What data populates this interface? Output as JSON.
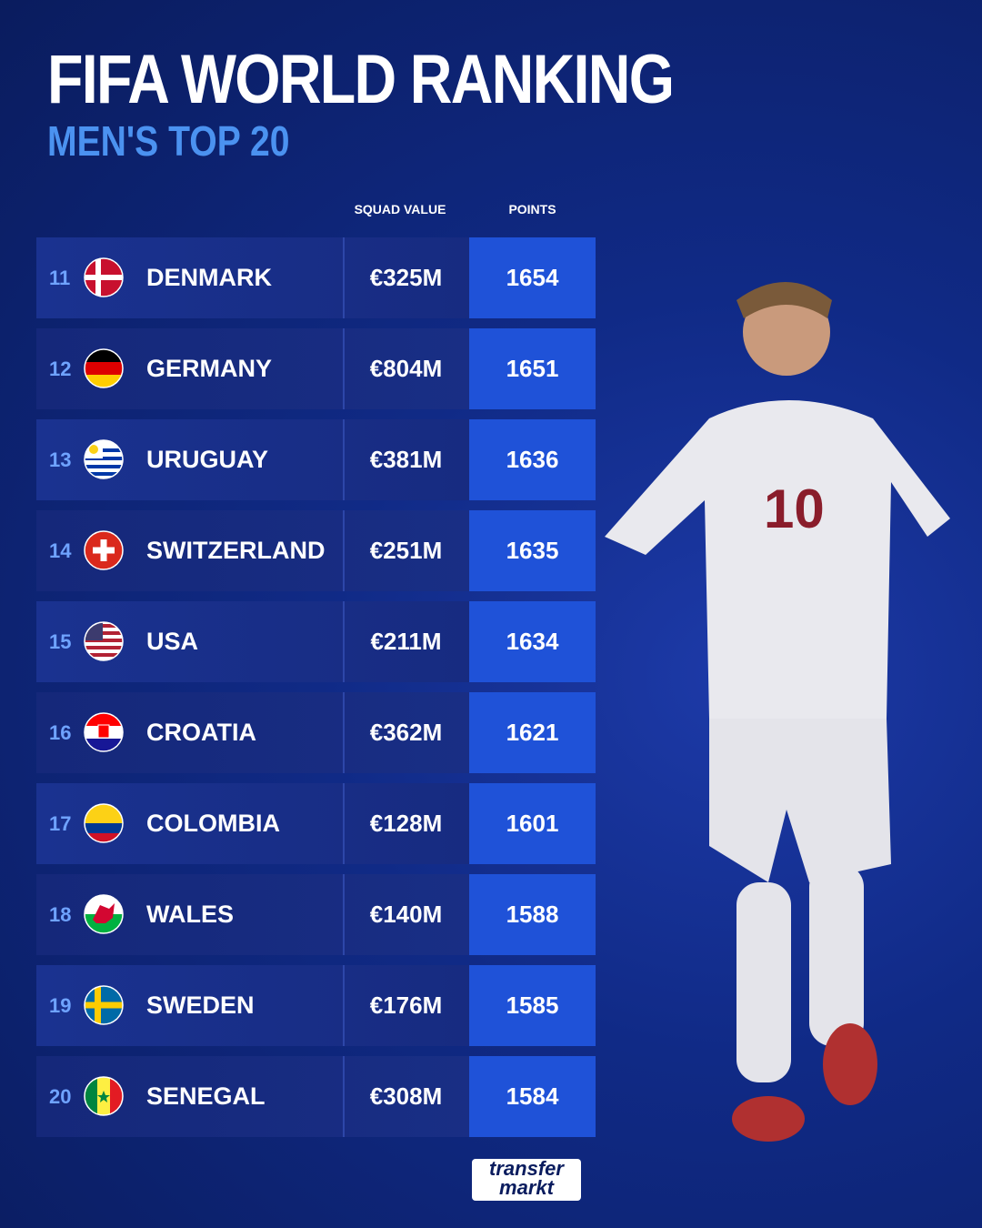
{
  "header": {
    "title": "FIFA WORLD RANKING",
    "subtitle": "MEN'S TOP 20"
  },
  "table": {
    "columns": [
      "SQUAD VALUE",
      "POINTS"
    ],
    "rows": [
      [
        11,
        "DENMARK",
        "€325M",
        1654
      ],
      [
        12,
        "GERMANY",
        "€804M",
        1651
      ],
      [
        13,
        "URUGUAY",
        "€381M",
        1636
      ],
      [
        14,
        "SWITZERLAND",
        "€251M",
        1635
      ],
      [
        15,
        "USA",
        "€211M",
        1634
      ],
      [
        16,
        "CROATIA",
        "€362M",
        1621
      ],
      [
        17,
        "COLOMBIA",
        "€128M",
        1601
      ],
      [
        18,
        "WALES",
        "€140M",
        1588
      ],
      [
        19,
        "SWEDEN",
        "€176M",
        1585
      ],
      [
        20,
        "SENEGAL",
        "€308M",
        1584
      ]
    ]
  },
  "logo": {
    "line1": "transfer",
    "line2": "markt"
  }
}
